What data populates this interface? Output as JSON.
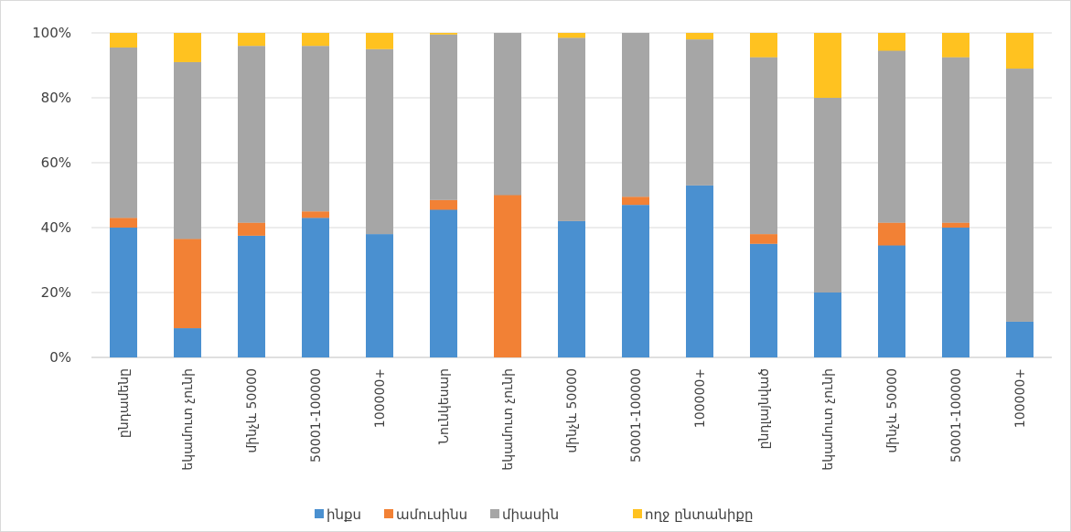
{
  "chart_data": {
    "type": "bar",
    "stacked": true,
    "percent_stacked": true,
    "title": "",
    "xlabel": "",
    "ylabel": "",
    "ylim": [
      0,
      100
    ],
    "yticks": [
      "0%",
      "20%",
      "40%",
      "60%",
      "80%",
      "100%"
    ],
    "grid": true,
    "legend_position": "bottom",
    "categories": [
      "ընդամենը",
      "եկամուտ չունի",
      "մինչև 50000",
      "50001-100000",
      "100000+",
      "Նունկեսար",
      "եկամուտ չունի",
      "մինչև 50000",
      "50001-100000",
      "100000+",
      "ընդլայնված",
      "եկամուտ չունի",
      "մինչև 50000",
      "50001-100000",
      "100000+"
    ],
    "series": [
      {
        "name": "ինքս",
        "color": "#4a90d0",
        "values": [
          40,
          9,
          37.5,
          43,
          38,
          45.5,
          0,
          42,
          47,
          53,
          35,
          20,
          34.5,
          40,
          11
        ]
      },
      {
        "name": "ամուսինս",
        "color": "#f28135",
        "values": [
          3,
          27.5,
          4,
          2,
          0,
          3,
          50,
          0,
          2.5,
          0,
          3,
          0,
          7,
          1.5,
          0
        ]
      },
      {
        "name": "միասին",
        "color": "#a6a6a6",
        "values": [
          52.5,
          54.5,
          54.5,
          51,
          57,
          51,
          50,
          56.5,
          50.5,
          45,
          54.5,
          60,
          53,
          51,
          78
        ]
      },
      {
        "name": "ողջ ընտանիքը",
        "color": "#ffc220",
        "values": [
          4.5,
          9,
          4,
          4,
          5,
          0.5,
          0,
          1.5,
          0,
          2,
          7.5,
          20,
          5.5,
          7.5,
          11
        ]
      }
    ]
  }
}
